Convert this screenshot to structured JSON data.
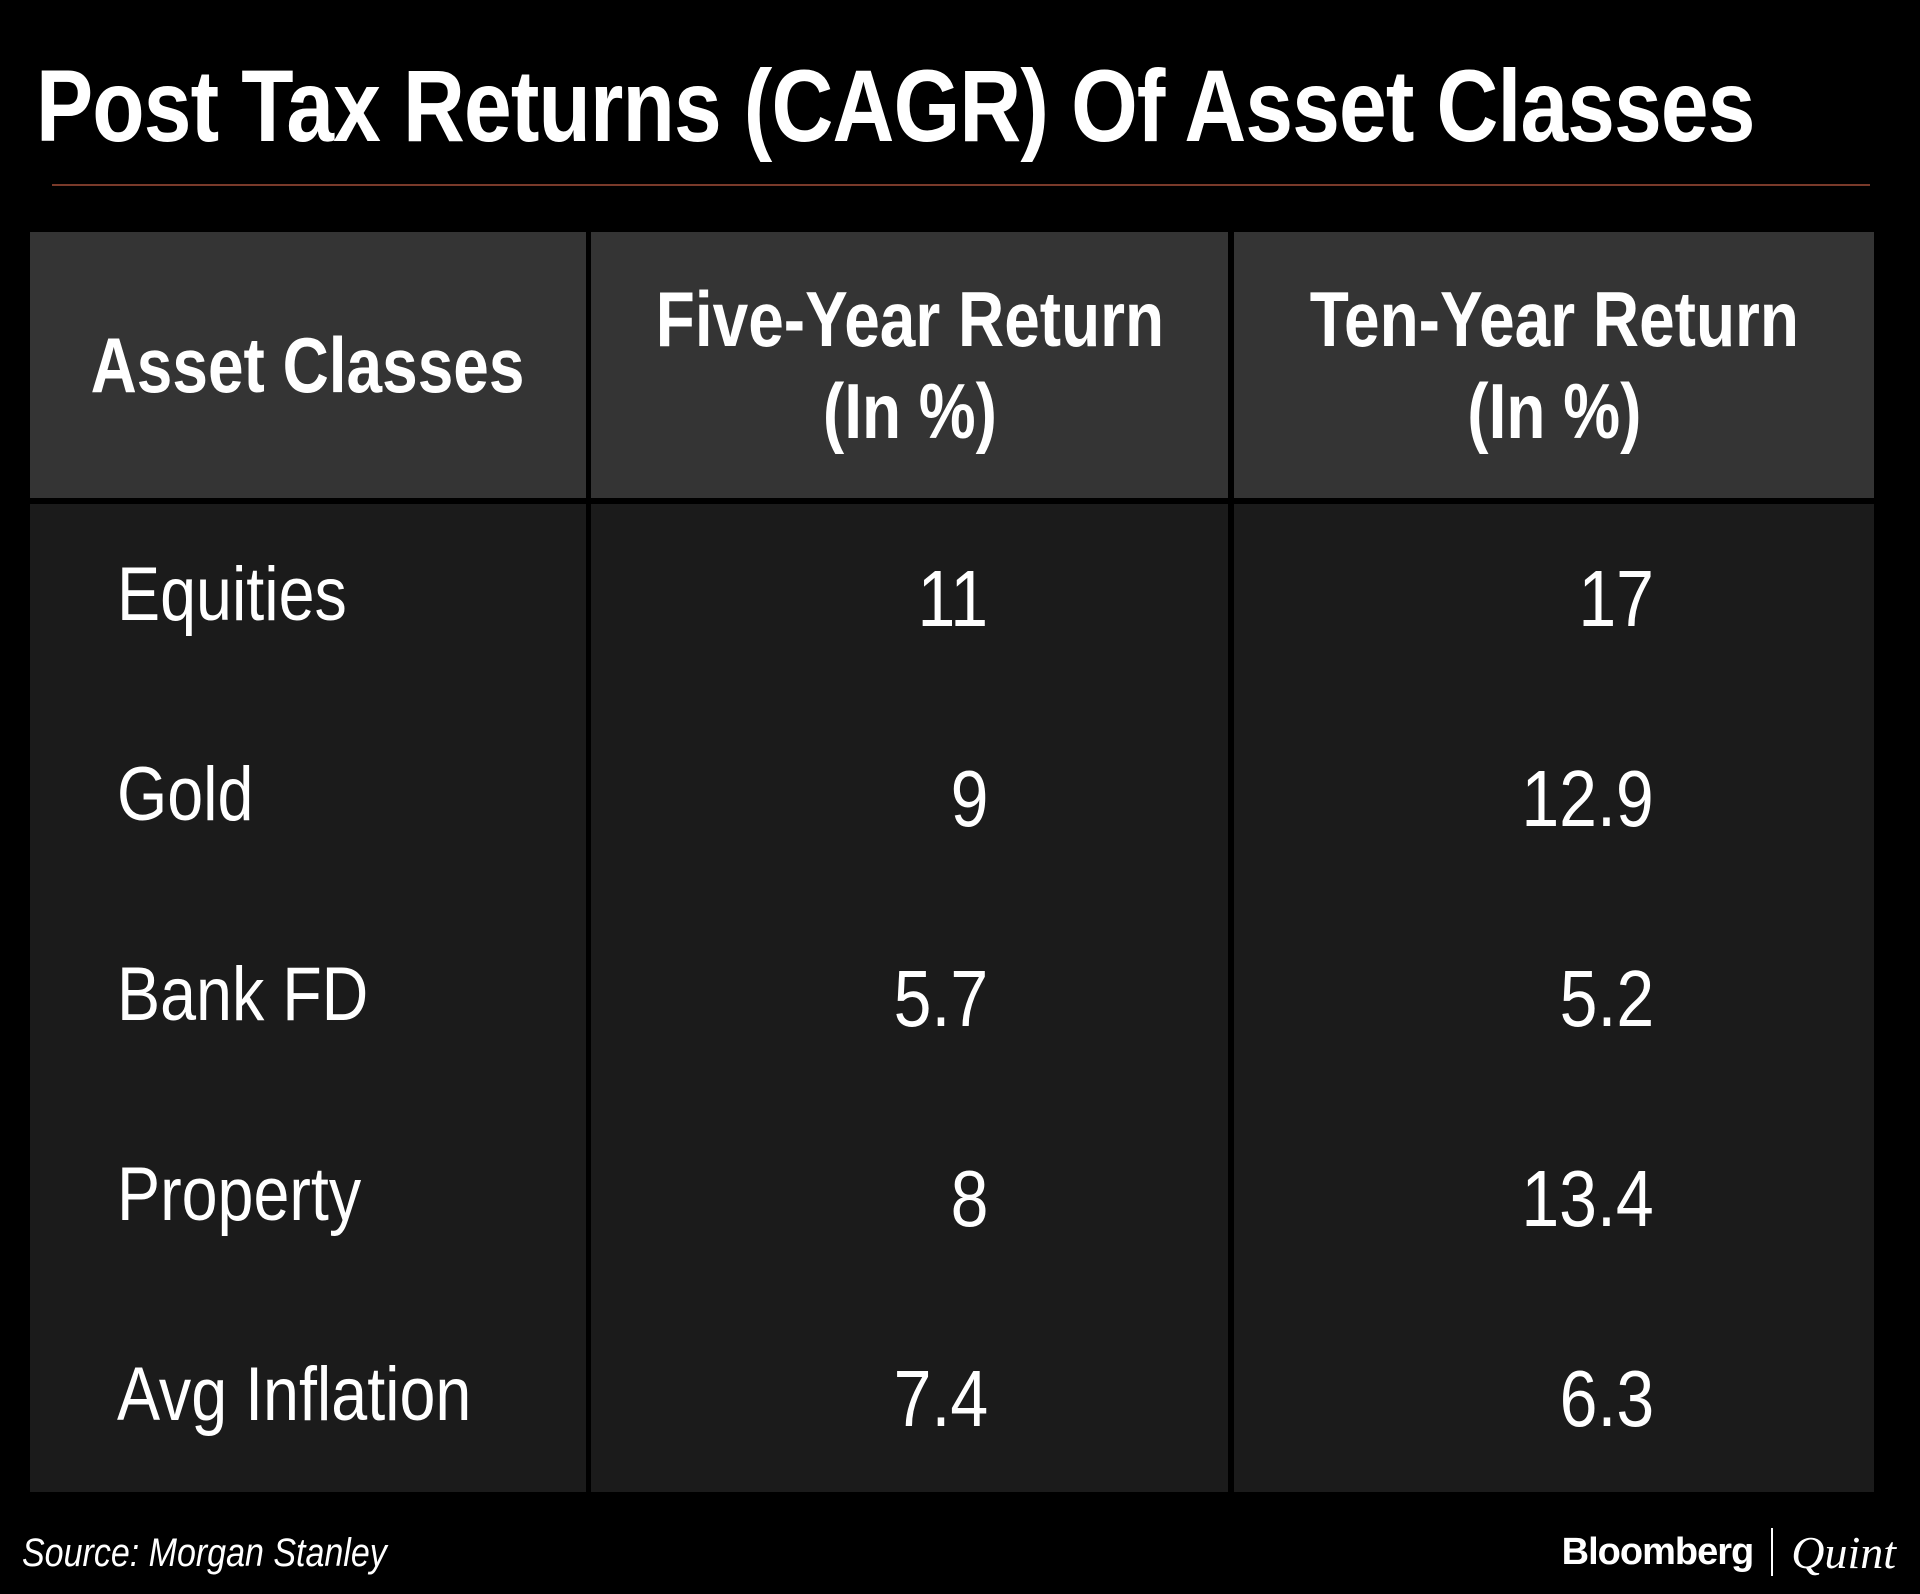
{
  "title": "Post Tax Returns (CAGR) Of Asset Classes",
  "source": "Source: Morgan Stanley",
  "brand": {
    "primary": "Bloomberg",
    "secondary": "Quint"
  },
  "colors": {
    "background": "#000000",
    "header_fill": "#343434",
    "body_fill": "#1b1b1b",
    "rule": "#7a3a2a",
    "text": "#ffffff"
  },
  "chart_data": {
    "type": "table",
    "title": "Post Tax Returns (CAGR) Of Asset Classes",
    "columns": [
      "Asset Classes",
      "Five-Year Return\n(In %)",
      "Ten-Year Return\n(In %)"
    ],
    "rows": [
      {
        "label": "Equities",
        "five_year": "11",
        "ten_year": "17"
      },
      {
        "label": "Gold",
        "five_year": "9",
        "ten_year": "12.9"
      },
      {
        "label": "Bank FD",
        "five_year": "5.7",
        "ten_year": "5.2"
      },
      {
        "label": "Property",
        "five_year": "8",
        "ten_year": "13.4"
      },
      {
        "label": "Avg Inflation",
        "five_year": "7.4",
        "ten_year": "6.3"
      }
    ]
  }
}
